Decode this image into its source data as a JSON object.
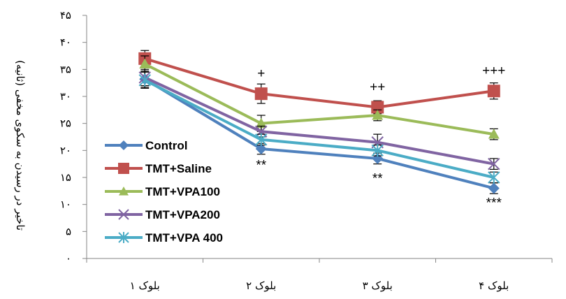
{
  "chart_data": {
    "type": "line",
    "title": "",
    "ylabel": "تاخیر در رسیدن به سکوی مخفی (ثانیه)",
    "xlabel": "",
    "categories": [
      "بلوک ۱",
      "بلوک ۲",
      "بلوک ۳",
      "بلوک ۴"
    ],
    "ylim": [
      0,
      45
    ],
    "yticks": [
      0,
      5,
      10,
      15,
      20,
      25,
      30,
      35,
      40,
      45
    ],
    "ytick_labels": [
      "۰",
      "۵",
      "۱۰",
      "۱۵",
      "۲۰",
      "۲۵",
      "۳۰",
      "۳۵",
      "۴۰",
      "۴۵"
    ],
    "grid": false,
    "legend_position": "bottom-left",
    "series": [
      {
        "name": "Control",
        "color": "#4F81BD",
        "marker": "diamond",
        "values": [
          33.2,
          20.3,
          18.5,
          13.0
        ],
        "errors": [
          1.5,
          1.0,
          1.0,
          1.0
        ]
      },
      {
        "name": "TMT+Saline",
        "color": "#C0504D",
        "marker": "square",
        "values": [
          37.0,
          30.5,
          28.0,
          31.0
        ],
        "errors": [
          1.5,
          1.8,
          1.2,
          1.5
        ]
      },
      {
        "name": "TMT+VPA100",
        "color": "#9BBB59",
        "marker": "triangle",
        "values": [
          36.0,
          25.0,
          26.5,
          23.0
        ],
        "errors": [
          1.5,
          1.5,
          1.0,
          1.0
        ]
      },
      {
        "name": "TMT+VPA200",
        "color": "#8064A2",
        "marker": "x",
        "values": [
          33.5,
          23.5,
          21.5,
          17.5
        ],
        "errors": [
          1.5,
          1.0,
          1.5,
          1.0
        ]
      },
      {
        "name": "TMT+VPA 400",
        "color": "#4BACC6",
        "marker": "asterisk",
        "values": [
          33.0,
          22.0,
          20.0,
          15.0
        ],
        "errors": [
          1.5,
          1.0,
          1.0,
          1.0
        ]
      }
    ],
    "annotations": [
      {
        "text": "+",
        "category": 1,
        "y": 33.5
      },
      {
        "text": "++",
        "category": 2,
        "y": 31.0
      },
      {
        "text": "+++",
        "category": 3,
        "y": 34.0
      },
      {
        "text": "**",
        "category": 1,
        "y": 16.5
      },
      {
        "text": "**",
        "category": 2,
        "y": 14.0
      },
      {
        "text": "***",
        "category": 3,
        "y": 9.5
      }
    ]
  }
}
